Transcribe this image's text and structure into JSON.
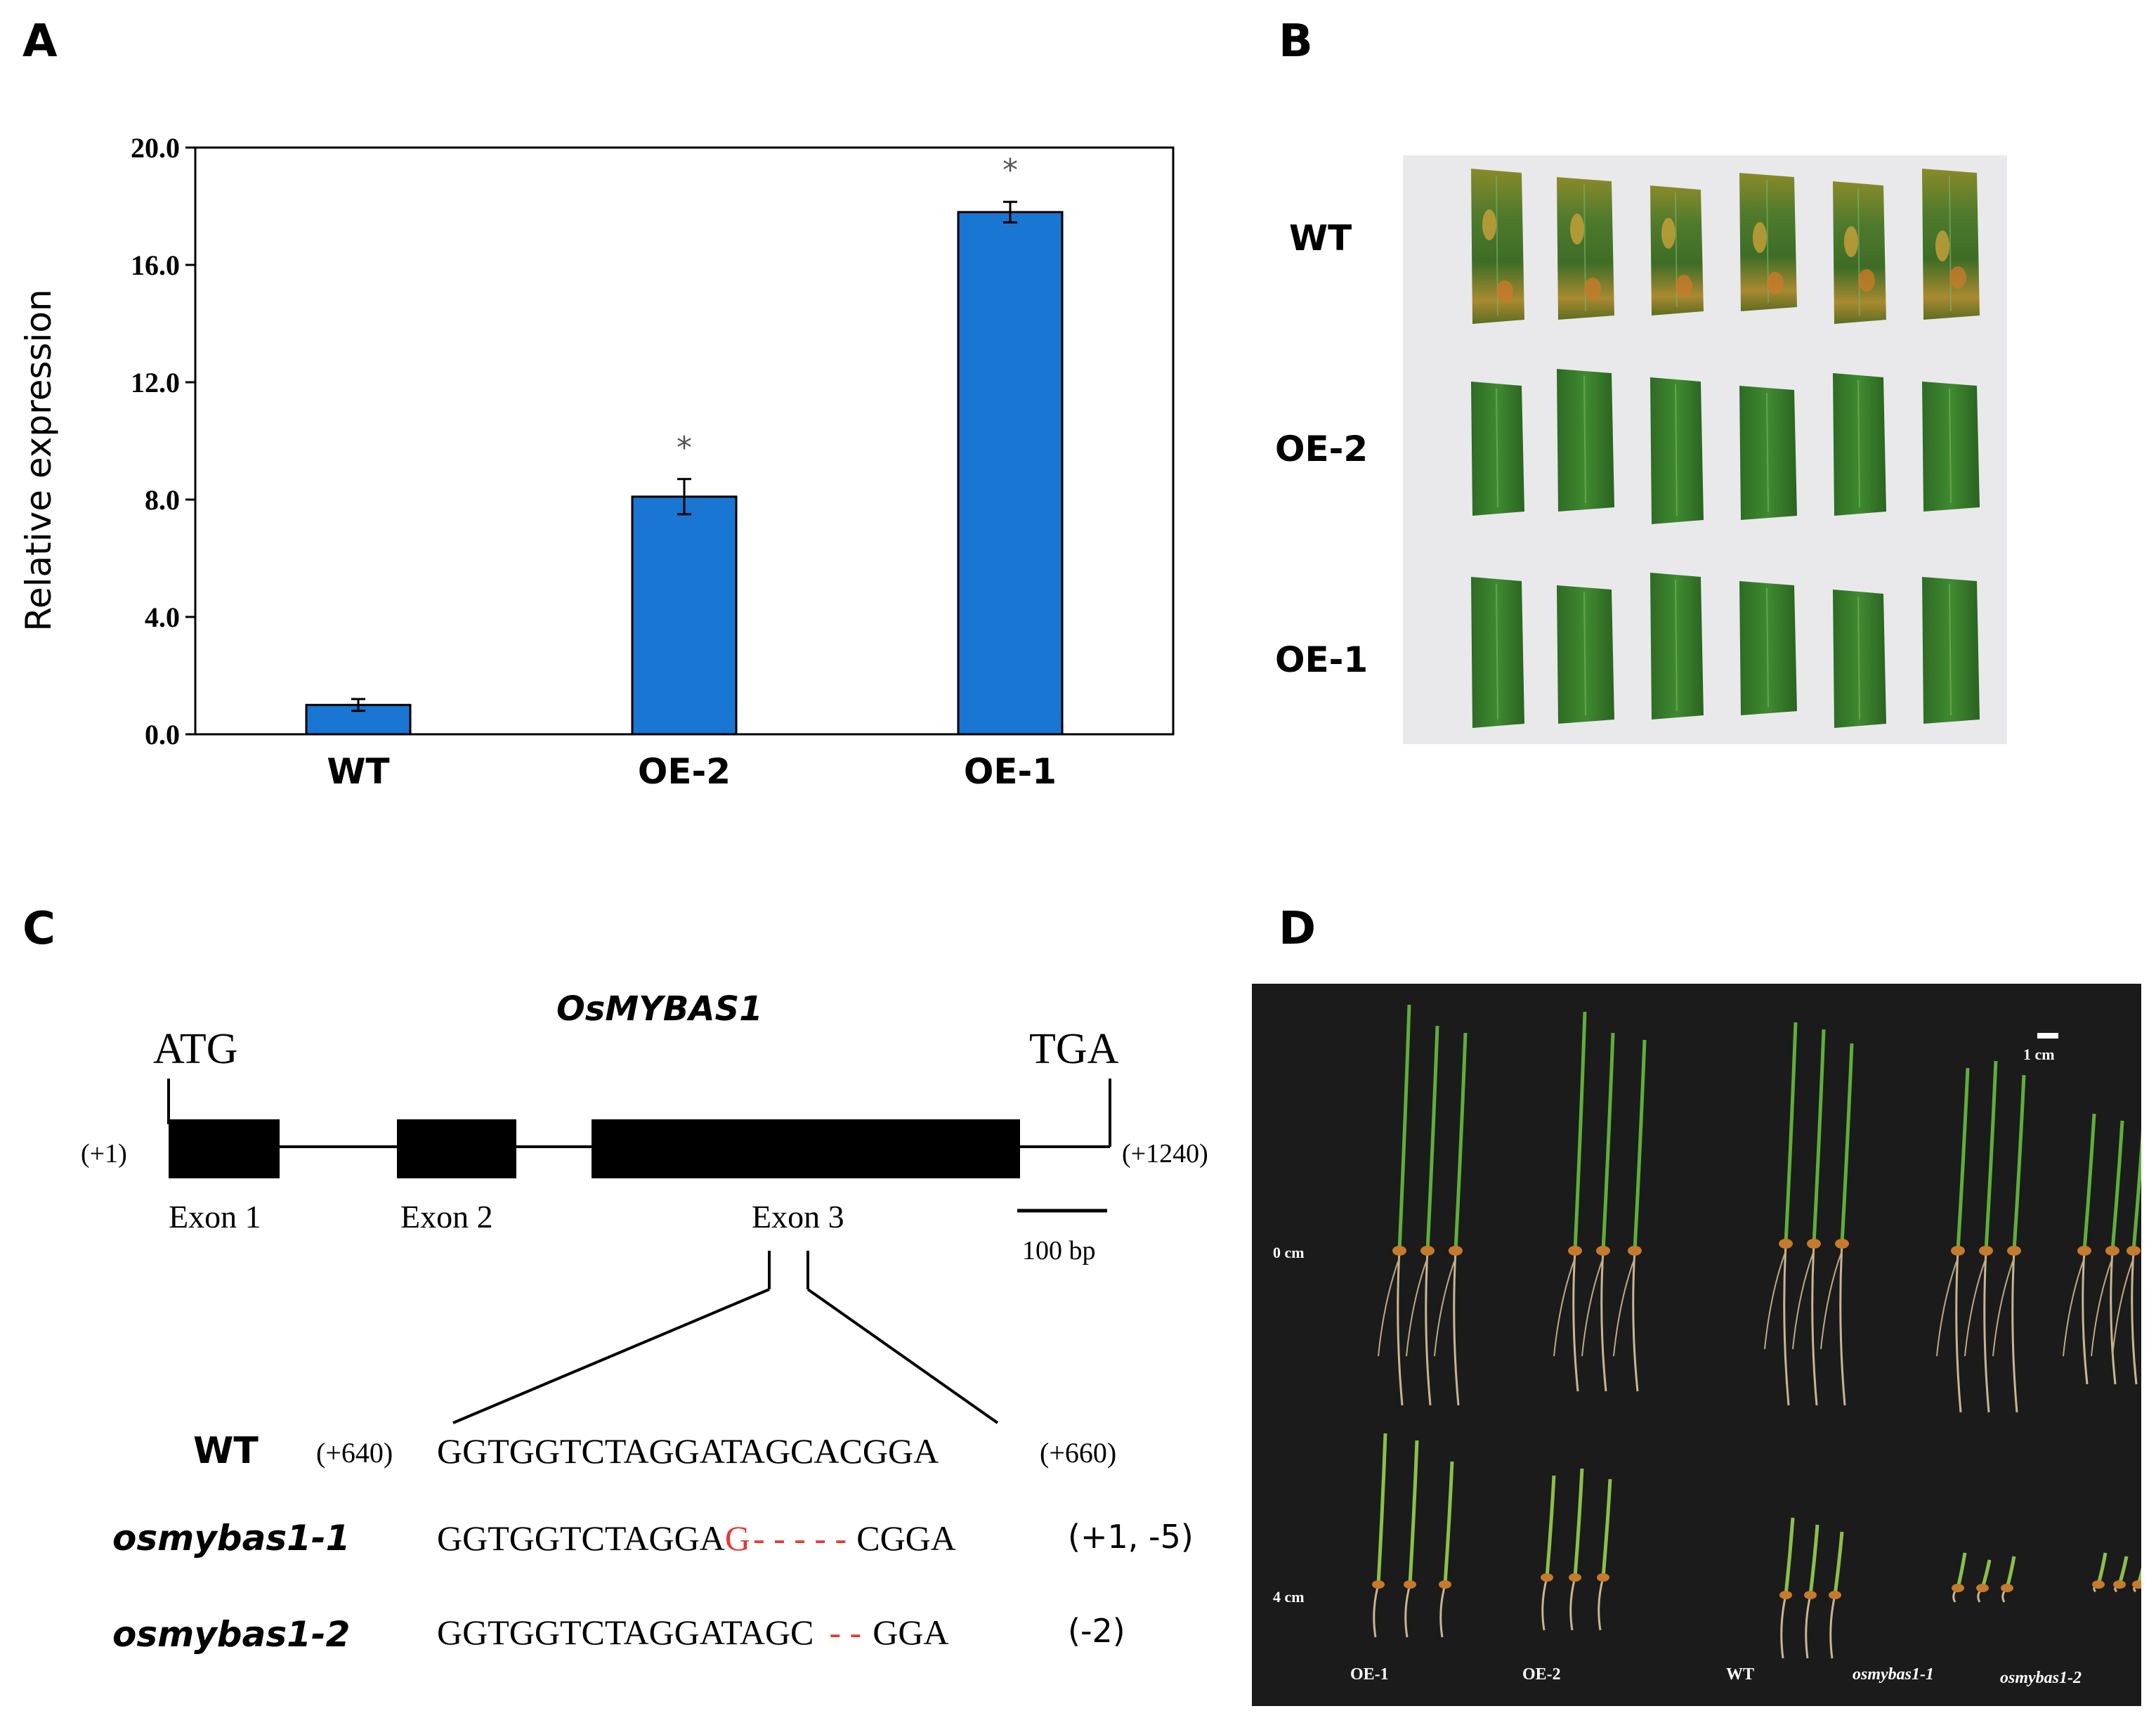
{
  "panels": {
    "a": "A",
    "b": "B",
    "c": "C",
    "d": "D"
  },
  "chart_data": {
    "type": "bar",
    "ylabel": "Relative expression",
    "ylim": [
      0,
      20
    ],
    "yticks": [
      "0.0",
      "4.0",
      "8.0",
      "12.0",
      "16.0",
      "20.0"
    ],
    "categories": [
      "WT",
      "OE-2",
      "OE-1"
    ],
    "values": [
      1.0,
      8.1,
      17.8
    ],
    "errors": [
      0.2,
      0.6,
      0.35
    ],
    "annotations": [
      "",
      "*",
      "*"
    ],
    "bar_color": "#1976d2"
  },
  "panel_b": {
    "rows": [
      "WT",
      "OE-2",
      "OE-1"
    ]
  },
  "panel_c": {
    "gene": "OsMYBAS1",
    "start_codon": "ATG",
    "stop_codon": "TGA",
    "start_pos": "(+1)",
    "end_pos": "(+1240)",
    "exons": [
      "Exon 1",
      "Exon 2",
      "Exon 3"
    ],
    "scale": "100 bp",
    "sequences": [
      {
        "name": "WT",
        "left_pos": "(+640)",
        "seq": "GGTGGTCTAGGATAGCACGGA",
        "right_pos": "(+660)"
      },
      {
        "name": "osmybas1-1",
        "seq_a": "GGTGGTCTAGGA",
        "seq_ins": "G",
        "seq_del": "- - - - -",
        "seq_b": "CGGA",
        "mutation": "(+1, -5)"
      },
      {
        "name": "osmybas1-2",
        "seq_a": "GGTGGTCTAGGATAGC",
        "seq_del": "- -",
        "seq_b": "GGA",
        "mutation": "(-2)"
      }
    ]
  },
  "panel_d": {
    "scale": "1 cm",
    "rows": [
      "0 cm",
      "4 cm"
    ],
    "labels": [
      "OE-1",
      "OE-2",
      "WT",
      "osmybas1-1",
      "osmybas1-2"
    ]
  }
}
